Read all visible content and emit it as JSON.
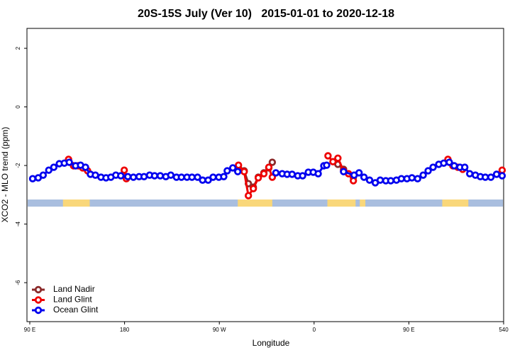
{
  "chart_data": {
    "type": "line",
    "title": "20S-15S July (Ver 10)   2015-01-01 to 2020-12-18",
    "xlabel": "Longitude",
    "ylabel": "XCO2 - MLO trend (ppm)",
    "xlim": [
      87.3,
      540
    ],
    "ylim": [
      -7.33,
      2.68
    ],
    "xticks": [
      {
        "value": 90,
        "label": "90 E"
      },
      180,
      {
        "value": 270,
        "label": "90 W"
      },
      {
        "value": 360,
        "label": "0"
      },
      {
        "value": 450,
        "label": "90 E"
      },
      540
    ],
    "yticks": [
      2,
      0,
      -2,
      -4,
      -6
    ],
    "legend": "bottom-left",
    "land_mask": [
      [
        121.5,
        146.9
      ],
      [
        287.5,
        320.3
      ],
      [
        372.6,
        399.4
      ],
      [
        403.4,
        408.7
      ],
      [
        481.7,
        506.5
      ]
    ],
    "land_color": "#f9d77a",
    "ocean_color": "#a9bedf",
    "series": [
      {
        "name": "Land Nadir",
        "color": "#8b2a2a",
        "x": [
          288.2,
          293.6,
          297.6,
          302.3,
          307,
          312.3,
          317,
          320.3,
          350,
          382.6,
          388,
          397.3
        ],
        "values": [
          -2.08,
          -2.18,
          -2.62,
          -2.74,
          -2.4,
          -2.25,
          -2.08,
          -1.89,
          null,
          -1.96,
          -2.13,
          -2.4
        ]
      },
      {
        "name": "Land Glint",
        "color": "#ee0000",
        "x": [
          126.8,
          131.5,
          136.2,
          140.2,
          144.9,
          160,
          179.7,
          181.7,
          230,
          288.2,
          293.6,
          297.6,
          302.3,
          307,
          312.3,
          317,
          320.3,
          350,
          373.2,
          377.9,
          382.6,
          388,
          392.7,
          397.3,
          440,
          487.1,
          491.8,
          496.5,
          501.1,
          520,
          538.6
        ],
        "values": [
          -1.79,
          -2.01,
          -2.01,
          -2.08,
          -2.18,
          null,
          -2.16,
          -2.45,
          null,
          -1.99,
          -2.21,
          -3.03,
          -2.79,
          -2.42,
          -2.28,
          -2.06,
          -2.4,
          null,
          -1.67,
          -1.87,
          -1.75,
          -2.18,
          -2.28,
          -2.52,
          null,
          -1.79,
          -2.01,
          -2.06,
          -2.13,
          null,
          -2.16
        ]
      },
      {
        "name": "Ocean Glint",
        "color": "#0000ee",
        "x": [
          92.7,
          98,
          102.7,
          108,
          112.8,
          118,
          122.8,
          127.5,
          133.5,
          138.2,
          142.9,
          147.6,
          152.3,
          157.6,
          162.4,
          167,
          171.7,
          176.4,
          183.1,
          188.4,
          193.8,
          198.5,
          203.8,
          208.5,
          213.9,
          219.2,
          223.9,
          229.3,
          234,
          239.3,
          244,
          249.3,
          254.1,
          259.4,
          264.1,
          269.5,
          274.2,
          277.5,
          282.8,
          287.5,
          305,
          323.7,
          329.7,
          334.4,
          339.1,
          344.5,
          349.1,
          354.5,
          359.2,
          363.9,
          369.2,
          371.9,
          380,
          388,
          398,
          402.7,
          407.4,
          412.7,
          418.1,
          422.8,
          428.1,
          432.8,
          438.2,
          442.9,
          448.2,
          452.9,
          458.3,
          463.6,
          468.3,
          473,
          478.4,
          483.1,
          488.4,
          493.1,
          498.5,
          503.1,
          507.8,
          513.2,
          517.9,
          522.6,
          527.9,
          533.3,
          538.6
        ],
        "values": [
          -2.45,
          -2.42,
          -2.33,
          -2.16,
          -2.06,
          -1.94,
          -1.92,
          -1.89,
          -2.01,
          -1.99,
          -2.06,
          -2.3,
          -2.33,
          -2.4,
          -2.42,
          -2.4,
          -2.33,
          -2.35,
          -2.38,
          -2.4,
          -2.38,
          -2.38,
          -2.33,
          -2.35,
          -2.35,
          -2.38,
          -2.33,
          -2.4,
          -2.4,
          -2.4,
          -2.4,
          -2.4,
          -2.5,
          -2.5,
          -2.4,
          -2.4,
          -2.38,
          -2.18,
          -2.08,
          -2.21,
          null,
          -2.25,
          -2.28,
          -2.3,
          -2.3,
          -2.35,
          -2.35,
          -2.23,
          -2.23,
          -2.28,
          -2.01,
          -1.99,
          null,
          -2.21,
          -2.33,
          -2.25,
          -2.4,
          -2.5,
          -2.59,
          -2.5,
          -2.52,
          -2.52,
          -2.5,
          -2.45,
          -2.45,
          -2.42,
          -2.45,
          -2.33,
          -2.18,
          -2.06,
          -1.96,
          -1.92,
          -1.89,
          -2.01,
          -2.06,
          -2.06,
          -2.28,
          -2.33,
          -2.38,
          -2.4,
          -2.4,
          -2.3,
          -2.35
        ]
      }
    ]
  }
}
